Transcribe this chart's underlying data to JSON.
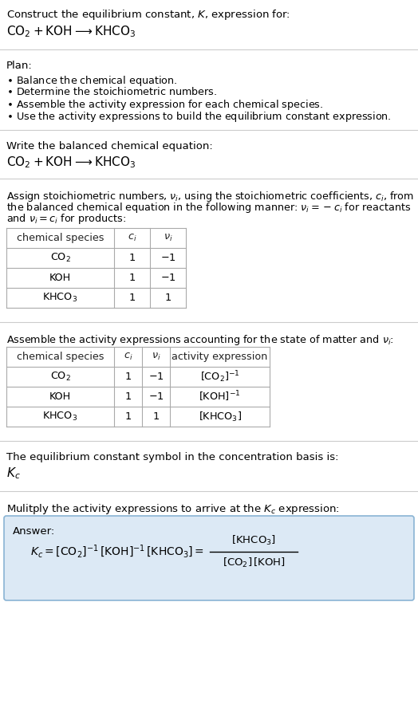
{
  "bg_color": "#ffffff",
  "text_color": "#000000",
  "answer_box_color": "#dce9f5",
  "answer_box_edge": "#8ab4d4",
  "title_line1": "Construct the equilibrium constant, $K$, expression for:",
  "title_line2": "$\\mathrm{CO_2 + KOH \\longrightarrow KHCO_3}$",
  "plan_header": "Plan:",
  "plan_items": [
    "$\\bullet$ Balance the chemical equation.",
    "$\\bullet$ Determine the stoichiometric numbers.",
    "$\\bullet$ Assemble the activity expression for each chemical species.",
    "$\\bullet$ Use the activity expressions to build the equilibrium constant expression."
  ],
  "balanced_eq_header": "Write the balanced chemical equation:",
  "balanced_eq": "$\\mathrm{CO_2 + KOH \\longrightarrow KHCO_3}$",
  "stoich_intro_parts": [
    "Assign stoichiometric numbers, $\\nu_i$, using the stoichiometric coefficients, $c_i$, from",
    "the balanced chemical equation in the following manner: $\\nu_i = -c_i$ for reactants",
    "and $\\nu_i = c_i$ for products:"
  ],
  "table1_headers": [
    "chemical species",
    "$c_i$",
    "$\\nu_i$"
  ],
  "table1_rows": [
    [
      "$\\mathrm{CO_2}$",
      "1",
      "$-1$"
    ],
    [
      "KOH",
      "1",
      "$-1$"
    ],
    [
      "$\\mathrm{KHCO_3}$",
      "1",
      "1"
    ]
  ],
  "activity_intro": "Assemble the activity expressions accounting for the state of matter and $\\nu_i$:",
  "table2_headers": [
    "chemical species",
    "$c_i$",
    "$\\nu_i$",
    "activity expression"
  ],
  "table2_rows": [
    [
      "$\\mathrm{CO_2}$",
      "1",
      "$-1$",
      "$[\\mathrm{CO_2}]^{-1}$"
    ],
    [
      "KOH",
      "1",
      "$-1$",
      "$[\\mathrm{KOH}]^{-1}$"
    ],
    [
      "$\\mathrm{KHCO_3}$",
      "1",
      "1",
      "$[\\mathrm{KHCO_3}]$"
    ]
  ],
  "kc_symbol_text": "The equilibrium constant symbol in the concentration basis is:",
  "kc_symbol": "$K_c$",
  "multiply_text": "Mulitply the activity expressions to arrive at the $K_c$ expression:",
  "answer_label": "Answer:",
  "answer_eq_left": "$K_c = [\\mathrm{CO_2}]^{-1}\\,[\\mathrm{KOH}]^{-1}\\,[\\mathrm{KHCO_3}] = $",
  "answer_frac_num": "$[\\mathrm{KHCO_3}]$",
  "answer_frac_den": "$[\\mathrm{CO_2}]\\,[\\mathrm{KOH}]$"
}
